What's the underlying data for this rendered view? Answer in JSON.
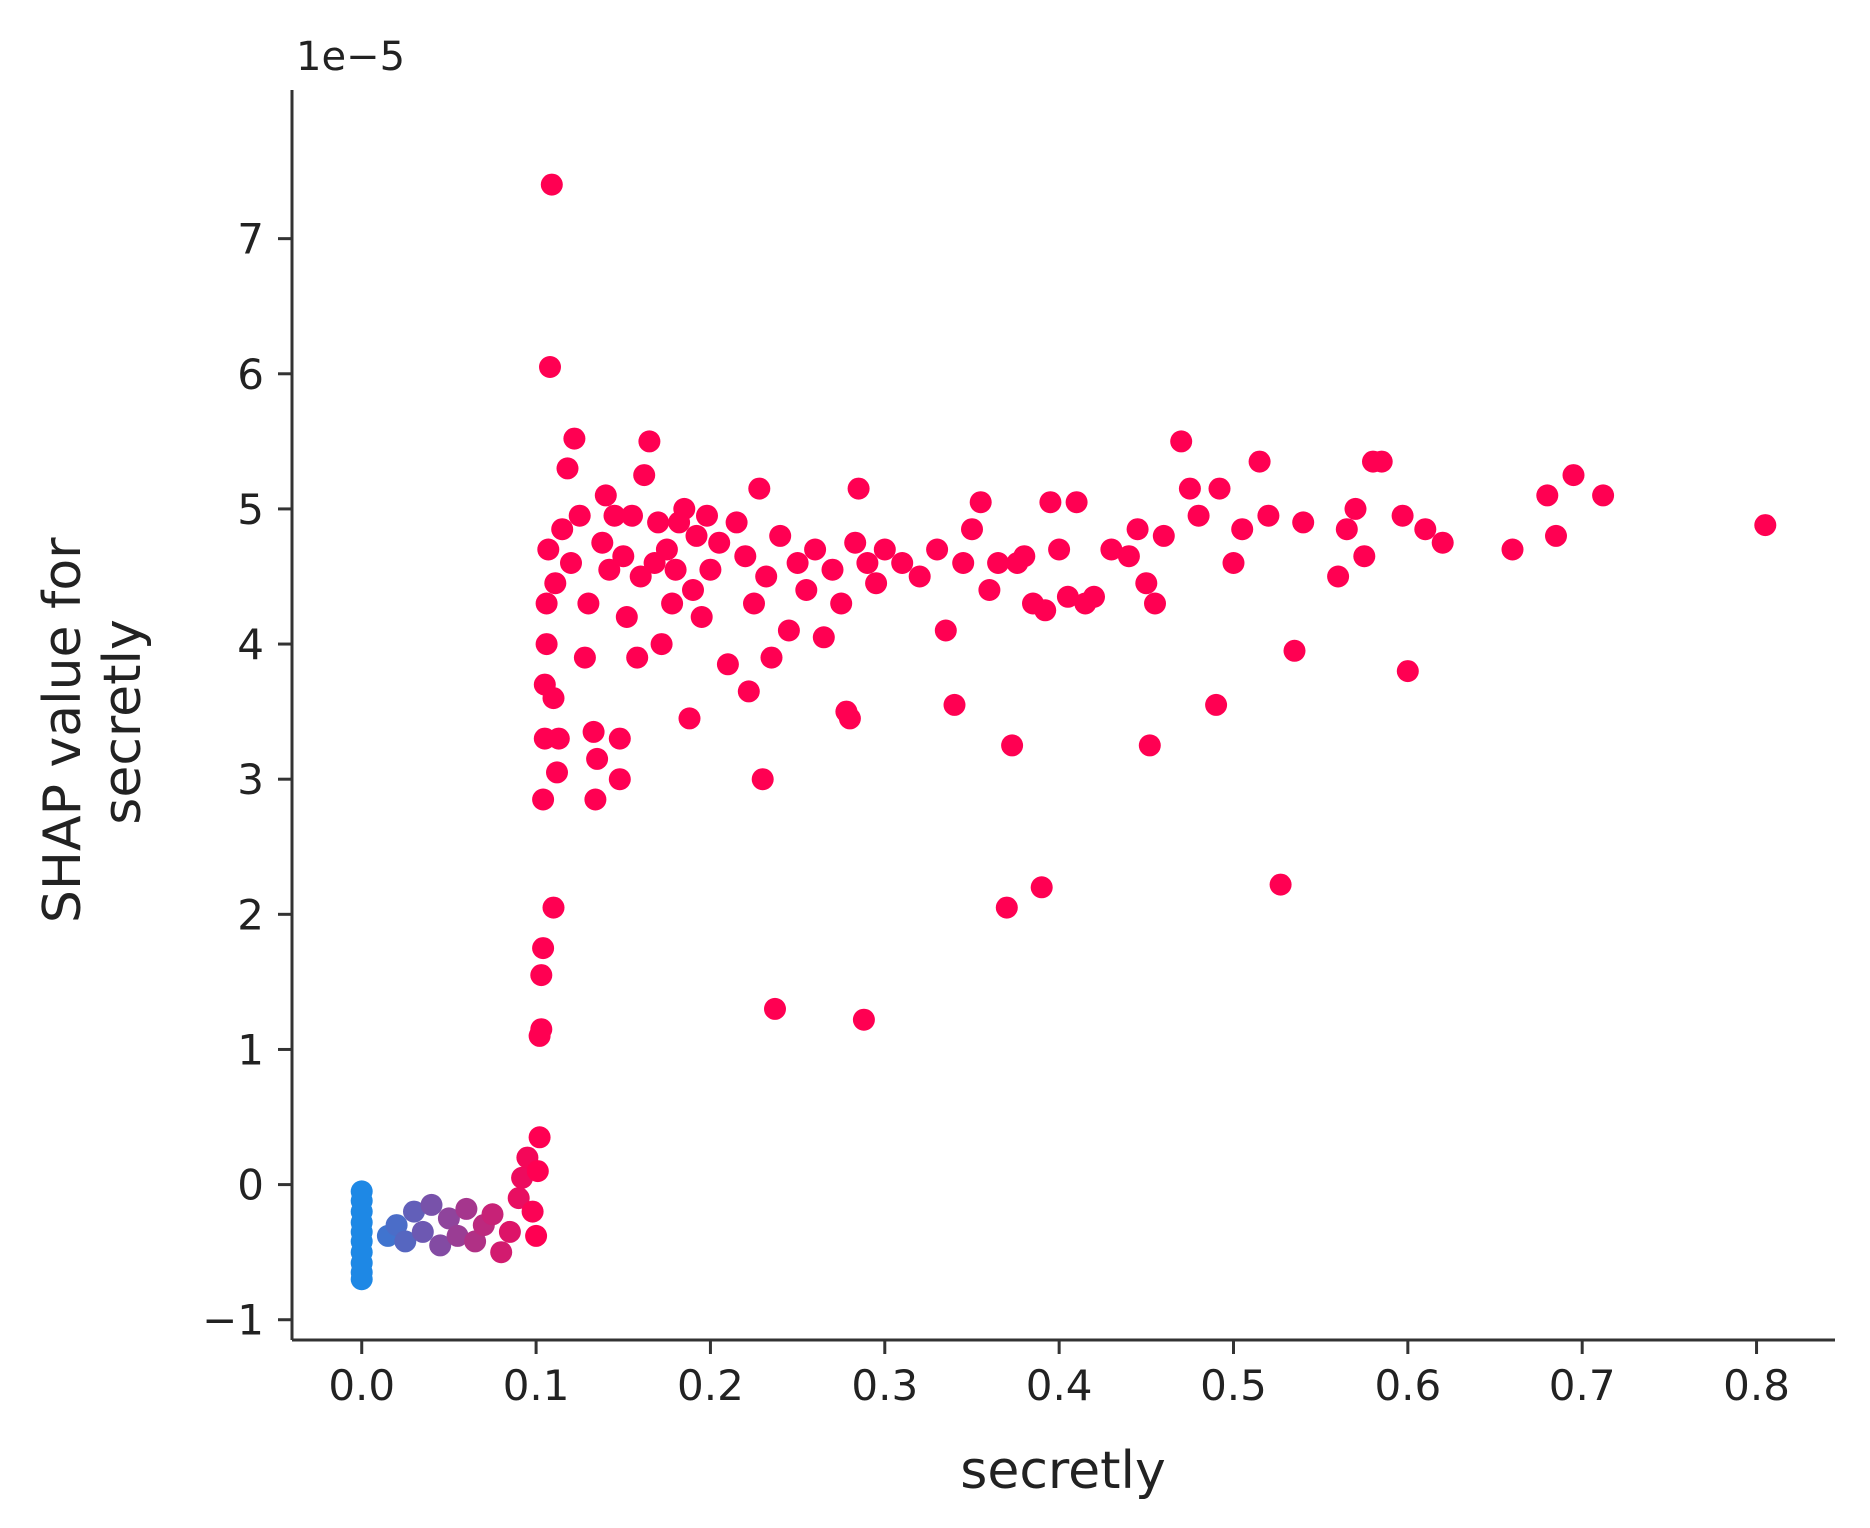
{
  "chart_data": {
    "type": "scatter",
    "title": "",
    "xlabel": "secretly",
    "ylabel": "SHAP value for\nsecretly",
    "ylabel_lines": [
      "SHAP value for",
      "secretly"
    ],
    "y_offset_label": "1e−5",
    "xlim": [
      -0.04,
      0.845
    ],
    "ylim": [
      -1.15,
      8.1
    ],
    "x_ticks": [
      0.0,
      0.1,
      0.2,
      0.3,
      0.4,
      0.5,
      0.6,
      0.7,
      0.8
    ],
    "x_tick_labels": [
      "0.0",
      "0.1",
      "0.2",
      "0.3",
      "0.4",
      "0.5",
      "0.6",
      "0.7",
      "0.8"
    ],
    "y_ticks": [
      -1,
      0,
      1,
      2,
      3,
      4,
      5,
      6,
      7
    ],
    "y_tick_labels": [
      "−1",
      "0",
      "1",
      "2",
      "3",
      "4",
      "5",
      "6",
      "7"
    ],
    "grid": false,
    "legend": "none",
    "colors": {
      "low": "#1e88e5",
      "high": "#ff0052",
      "axis": "#333333"
    },
    "points": [
      [
        0.0,
        -0.05
      ],
      [
        0.0,
        -0.12
      ],
      [
        0.0,
        -0.2
      ],
      [
        0.0,
        -0.28
      ],
      [
        0.0,
        -0.35
      ],
      [
        0.0,
        -0.42
      ],
      [
        0.0,
        -0.5
      ],
      [
        0.0,
        -0.58
      ],
      [
        0.0,
        -0.65
      ],
      [
        0.0,
        -0.7
      ],
      [
        0.015,
        -0.38
      ],
      [
        0.02,
        -0.3
      ],
      [
        0.025,
        -0.42
      ],
      [
        0.03,
        -0.2
      ],
      [
        0.035,
        -0.35
      ],
      [
        0.04,
        -0.15
      ],
      [
        0.045,
        -0.45
      ],
      [
        0.05,
        -0.25
      ],
      [
        0.055,
        -0.38
      ],
      [
        0.06,
        -0.18
      ],
      [
        0.065,
        -0.42
      ],
      [
        0.07,
        -0.3
      ],
      [
        0.075,
        -0.22
      ],
      [
        0.08,
        -0.5
      ],
      [
        0.085,
        -0.35
      ],
      [
        0.09,
        -0.1
      ],
      [
        0.092,
        0.05
      ],
      [
        0.095,
        0.2
      ],
      [
        0.098,
        -0.2
      ],
      [
        0.1,
        -0.38
      ],
      [
        0.101,
        0.1
      ],
      [
        0.102,
        0.35
      ],
      [
        0.102,
        1.1
      ],
      [
        0.103,
        1.15
      ],
      [
        0.103,
        1.55
      ],
      [
        0.104,
        1.75
      ],
      [
        0.104,
        2.85
      ],
      [
        0.105,
        3.3
      ],
      [
        0.105,
        3.7
      ],
      [
        0.106,
        4.0
      ],
      [
        0.106,
        4.3
      ],
      [
        0.107,
        4.7
      ],
      [
        0.108,
        6.05
      ],
      [
        0.109,
        7.4
      ],
      [
        0.11,
        2.05
      ],
      [
        0.11,
        3.6
      ],
      [
        0.111,
        4.45
      ],
      [
        0.112,
        3.05
      ],
      [
        0.113,
        3.3
      ],
      [
        0.115,
        4.85
      ],
      [
        0.118,
        5.3
      ],
      [
        0.12,
        4.6
      ],
      [
        0.122,
        5.52
      ],
      [
        0.125,
        4.95
      ],
      [
        0.128,
        3.9
      ],
      [
        0.13,
        4.3
      ],
      [
        0.133,
        3.35
      ],
      [
        0.134,
        2.85
      ],
      [
        0.135,
        3.15
      ],
      [
        0.138,
        4.75
      ],
      [
        0.14,
        5.1
      ],
      [
        0.142,
        4.55
      ],
      [
        0.145,
        4.95
      ],
      [
        0.148,
        3.3
      ],
      [
        0.148,
        3.0
      ],
      [
        0.15,
        4.65
      ],
      [
        0.152,
        4.2
      ],
      [
        0.155,
        4.95
      ],
      [
        0.158,
        3.9
      ],
      [
        0.16,
        4.5
      ],
      [
        0.162,
        5.25
      ],
      [
        0.165,
        5.5
      ],
      [
        0.168,
        4.6
      ],
      [
        0.17,
        4.9
      ],
      [
        0.172,
        4.0
      ],
      [
        0.175,
        4.7
      ],
      [
        0.178,
        4.3
      ],
      [
        0.18,
        4.55
      ],
      [
        0.182,
        4.9
      ],
      [
        0.185,
        5.0
      ],
      [
        0.188,
        3.45
      ],
      [
        0.19,
        4.4
      ],
      [
        0.192,
        4.8
      ],
      [
        0.195,
        4.2
      ],
      [
        0.198,
        4.95
      ],
      [
        0.2,
        4.55
      ],
      [
        0.205,
        4.75
      ],
      [
        0.21,
        3.85
      ],
      [
        0.215,
        4.9
      ],
      [
        0.22,
        4.65
      ],
      [
        0.222,
        3.65
      ],
      [
        0.225,
        4.3
      ],
      [
        0.228,
        5.15
      ],
      [
        0.23,
        3.0
      ],
      [
        0.232,
        4.5
      ],
      [
        0.235,
        3.9
      ],
      [
        0.237,
        1.3
      ],
      [
        0.24,
        4.8
      ],
      [
        0.245,
        4.1
      ],
      [
        0.25,
        4.6
      ],
      [
        0.255,
        4.4
      ],
      [
        0.26,
        4.7
      ],
      [
        0.265,
        4.05
      ],
      [
        0.27,
        4.55
      ],
      [
        0.275,
        4.3
      ],
      [
        0.278,
        3.5
      ],
      [
        0.28,
        3.45
      ],
      [
        0.283,
        4.75
      ],
      [
        0.285,
        5.15
      ],
      [
        0.288,
        1.22
      ],
      [
        0.29,
        4.6
      ],
      [
        0.295,
        4.45
      ],
      [
        0.3,
        4.7
      ],
      [
        0.31,
        4.6
      ],
      [
        0.32,
        4.5
      ],
      [
        0.33,
        4.7
      ],
      [
        0.335,
        4.1
      ],
      [
        0.34,
        3.55
      ],
      [
        0.345,
        4.6
      ],
      [
        0.35,
        4.85
      ],
      [
        0.355,
        5.05
      ],
      [
        0.36,
        4.4
      ],
      [
        0.365,
        4.6
      ],
      [
        0.37,
        2.05
      ],
      [
        0.373,
        3.25
      ],
      [
        0.376,
        4.6
      ],
      [
        0.38,
        4.65
      ],
      [
        0.385,
        4.3
      ],
      [
        0.39,
        2.2
      ],
      [
        0.392,
        4.25
      ],
      [
        0.395,
        5.05
      ],
      [
        0.4,
        4.7
      ],
      [
        0.405,
        4.35
      ],
      [
        0.41,
        5.05
      ],
      [
        0.415,
        4.3
      ],
      [
        0.42,
        4.35
      ],
      [
        0.43,
        4.7
      ],
      [
        0.44,
        4.65
      ],
      [
        0.445,
        4.85
      ],
      [
        0.45,
        4.45
      ],
      [
        0.452,
        3.25
      ],
      [
        0.455,
        4.3
      ],
      [
        0.46,
        4.8
      ],
      [
        0.47,
        5.5
      ],
      [
        0.475,
        5.15
      ],
      [
        0.48,
        4.95
      ],
      [
        0.49,
        3.55
      ],
      [
        0.492,
        5.15
      ],
      [
        0.5,
        4.6
      ],
      [
        0.505,
        4.85
      ],
      [
        0.515,
        5.35
      ],
      [
        0.52,
        4.95
      ],
      [
        0.527,
        2.22
      ],
      [
        0.535,
        3.95
      ],
      [
        0.54,
        4.9
      ],
      [
        0.56,
        4.5
      ],
      [
        0.565,
        4.85
      ],
      [
        0.57,
        5.0
      ],
      [
        0.575,
        4.65
      ],
      [
        0.58,
        5.35
      ],
      [
        0.585,
        5.35
      ],
      [
        0.597,
        4.95
      ],
      [
        0.6,
        3.8
      ],
      [
        0.61,
        4.85
      ],
      [
        0.62,
        4.75
      ],
      [
        0.66,
        4.7
      ],
      [
        0.68,
        5.1
      ],
      [
        0.685,
        4.8
      ],
      [
        0.695,
        5.25
      ],
      [
        0.712,
        5.1
      ],
      [
        0.805,
        4.88
      ]
    ]
  }
}
